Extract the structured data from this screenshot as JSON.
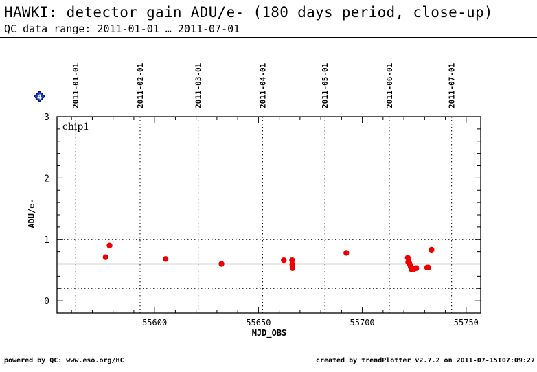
{
  "header": {
    "title": "HAWKI: detector gain ADU/e- (180 days period, close-up)",
    "subtitle": "QC data range: 2011-01-01 … 2011-07-01"
  },
  "footer": {
    "left": "powered by QC: www.eso.org/HC",
    "right": "created by trendPlotter v2.7.2 on 2011-07-15T07:09:27"
  },
  "badge": {
    "label": "4",
    "icon": "diamond-badge-icon"
  },
  "colors": {
    "points": "#ee0000",
    "badge_fill": "#1a3fe0",
    "reference_line": "#555555"
  },
  "chart_data": {
    "type": "scatter",
    "panel_label": "chip1",
    "xlabel": "MJD_OBS",
    "ylabel": "ADU/e-",
    "xlim": [
      55553,
      55757
    ],
    "ylim": [
      -0.2,
      3.0
    ],
    "x_ticks": [
      55600,
      55650,
      55700,
      55750
    ],
    "y_ticks": [
      0,
      1,
      2,
      3
    ],
    "date_ticks": [
      {
        "mjd": 55562,
        "label": "2011-01-01"
      },
      {
        "mjd": 55593,
        "label": "2011-02-01"
      },
      {
        "mjd": 55621,
        "label": "2011-03-01"
      },
      {
        "mjd": 55652,
        "label": "2011-04-01"
      },
      {
        "mjd": 55682,
        "label": "2011-05-01"
      },
      {
        "mjd": 55713,
        "label": "2011-06-01"
      },
      {
        "mjd": 55743,
        "label": "2011-07-01"
      }
    ],
    "reference_line": 0.6,
    "threshold_lines": [
      0.2,
      1.0
    ],
    "grid": true,
    "series": [
      {
        "x": [
          55576.4,
          55578.3,
          55605.3,
          55632.2,
          55662.2,
          55666.2,
          55666.3,
          55666.4,
          55692.3,
          55721.9,
          55722.1,
          55722.3,
          55722.6,
          55722.9,
          55723.3,
          55723.7,
          55724.2,
          55725.0,
          55726.0,
          55731.2,
          55731.8,
          55733.3
        ],
        "y": [
          0.71,
          0.9,
          0.68,
          0.6,
          0.66,
          0.66,
          0.59,
          0.53,
          0.78,
          0.7,
          0.63,
          0.64,
          0.61,
          0.59,
          0.55,
          0.51,
          0.51,
          0.52,
          0.53,
          0.54,
          0.54,
          0.83
        ]
      }
    ]
  }
}
